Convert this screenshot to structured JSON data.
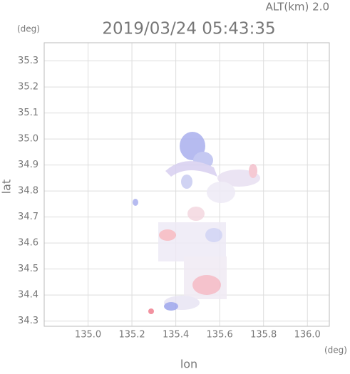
{
  "chart_data": {
    "type": "map",
    "title": "2019/03/24 05:43:35",
    "subtitle": "ALT(km) 2.0",
    "x_label": "lon",
    "y_label": "lat",
    "x_unit": "(deg)",
    "y_unit": "(deg)",
    "xlim": [
      134.8,
      136.1
    ],
    "ylim": [
      34.28,
      35.37
    ],
    "xticks": [
      {
        "value": 135.0,
        "label": "135.0"
      },
      135.2,
      135.4,
      135.6,
      135.8,
      {
        "value": 136.0,
        "label": "136.0"
      }
    ],
    "yticks": [
      34.3,
      34.4,
      34.5,
      34.6,
      34.7,
      34.8,
      34.9,
      {
        "value": 35.0,
        "label": "35.0"
      },
      35.1,
      35.2,
      35.3
    ],
    "grid": true
  }
}
